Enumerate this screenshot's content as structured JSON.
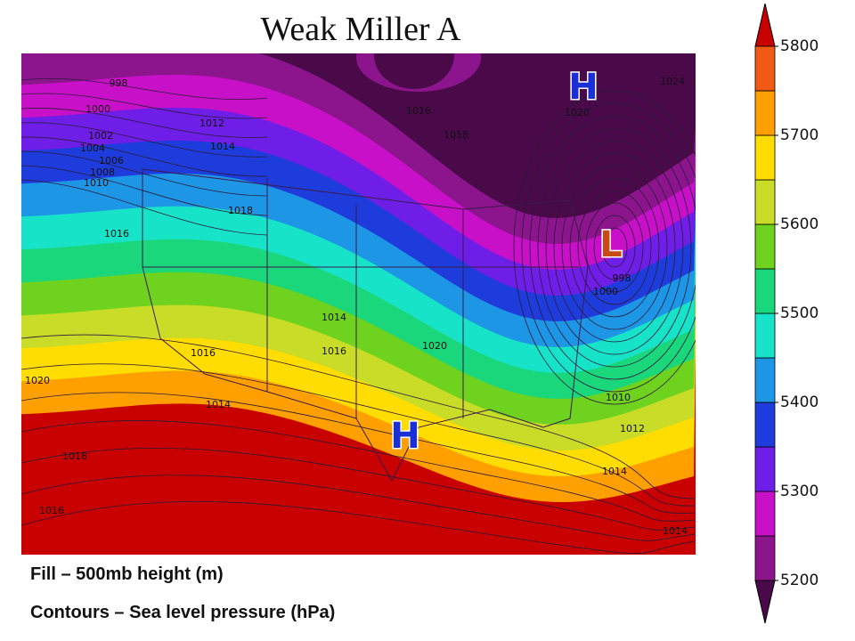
{
  "map": {
    "title": "Weak Miller A",
    "fill_caption": "Fill – 500mb height (m)",
    "contour_caption": "Contours – Sea level pressure (hPa)",
    "pressure_centers": [
      {
        "label": "H",
        "color": "#1a2fd6"
      },
      {
        "label": "L",
        "color": "#c84a14"
      },
      {
        "label": "H",
        "color": "#1a2fd6"
      }
    ],
    "contour_labels": [
      998,
      1000,
      1002,
      1004,
      1006,
      1008,
      1010,
      1012,
      1014,
      1016,
      1018,
      1016,
      1018,
      1020,
      1014,
      1016,
      1016,
      1020,
      1020,
      1014,
      1018,
      1016,
      998,
      1000,
      1010,
      1012,
      1014,
      1014,
      1024
    ]
  },
  "colorbar": {
    "ticks": [
      5200,
      5300,
      5400,
      5500,
      5600,
      5700,
      5800
    ],
    "colors": [
      "#4a0a4a",
      "#8c148c",
      "#c810c8",
      "#6e1ee6",
      "#1e3cdc",
      "#1e96e6",
      "#17e3c8",
      "#19d77a",
      "#6ed21e",
      "#c8dc28",
      "#ffdd00",
      "#ffa000",
      "#f05a14",
      "#c80000"
    ]
  }
}
